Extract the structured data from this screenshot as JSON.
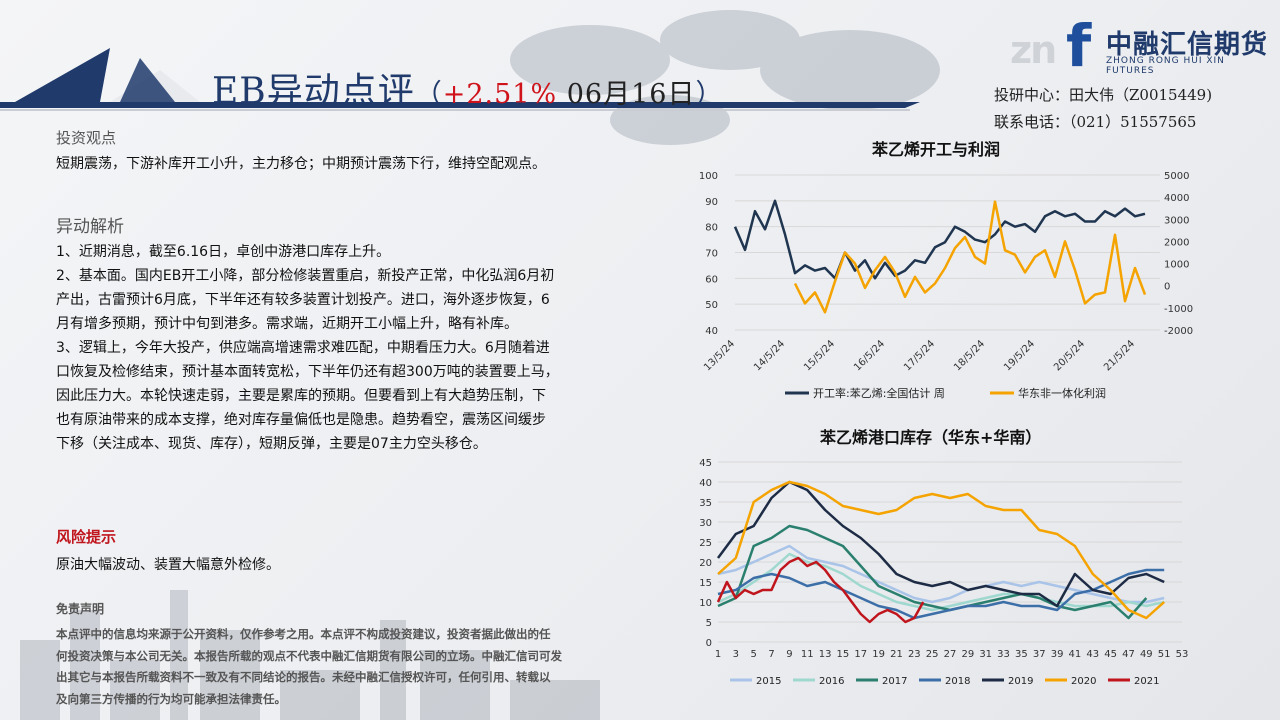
{
  "header": {
    "title_main": "EB异动点评",
    "title_open": "（",
    "title_change": "+2.51%",
    "title_date": " 06月16日",
    "title_close": "）",
    "logo_mark": "zn",
    "logo_f": "f",
    "logo_cn": "中融汇信期货",
    "logo_en": "ZHONG RONG HUI XIN FUTURES",
    "contact_line1": "投研中心：田大伟（Z0015449)",
    "contact_line2": "联系电话：（021）51557565"
  },
  "view": {
    "heading": "投资观点",
    "text": "短期震荡，下游补库开工小升，主力移仓；中期预计震荡下行，维持空配观点。"
  },
  "analysis": {
    "heading": "异动解析",
    "lines": [
      "1、近期消息，截至6.16日，卓创中游港口库存上升。",
      "2、基本面。国内EB开工小降，部分检修装置重启，新投产正常，中化弘润6月初",
      "产出，古雷预计6月底，下半年还有较多装置计划投产。进口，海外逐步恢复，6",
      "月有增多预期，预计中旬到港多。需求端，近期开工小幅上升，略有补库。",
      "3、逻辑上，今年大投产，供应端高增速需求难匹配，中期看压力大。6月随着进",
      "口恢复及检修结束，预计基本面转宽松，下半年仍还有超300万吨的装置要上马，",
      "因此压力大。本轮快速走弱，主要是累库的预期。但要看到上有大趋势压制，下",
      "也有原油带来的成本支撑，绝对库存量偏低也是隐患。趋势看空，震荡区间缓步",
      "下移（关注成本、现货、库存），短期反弹，主要是07主力空头移仓。"
    ]
  },
  "risk": {
    "heading": "风险提示",
    "text": "原油大幅波动、装置大幅意外检修。"
  },
  "disclaimer": {
    "heading": "免责声明",
    "lines": [
      "本点评中的信息均来源于公开资料，仅作参考之用。本点评不构成投资建议，投资者据此做出的任",
      "何投资决策与本公司无关。本报告所载的观点不代表中融汇信期货有限公司的立场。中融汇信司可发",
      "出其它与本报告所载资料不一致及有不同结论的报告。未经中融汇信授权许可，任何引用、转载以",
      "及向第三方传播的行为均可能承担法律责任。"
    ]
  },
  "chart_data": [
    {
      "type": "line",
      "title": "苯乙烯开工与利润",
      "x_ticks": [
        "13/5/24",
        "14/5/24",
        "15/5/24",
        "16/5/24",
        "17/5/24",
        "18/5/24",
        "19/5/24",
        "20/5/24",
        "21/5/24"
      ],
      "y_left": {
        "ticks": [
          40,
          50,
          60,
          70,
          80,
          90,
          100
        ],
        "range": [
          40,
          100
        ]
      },
      "y_right": {
        "ticks": [
          -2000,
          -1000,
          0,
          1000,
          2000,
          3000,
          4000,
          5000
        ],
        "range": [
          -2000,
          5000
        ]
      },
      "series": [
        {
          "name": "开工率:苯乙烯:全国估计 周",
          "axis": "left",
          "color": "#1f3550",
          "x": [
            13.0,
            13.2,
            13.4,
            13.6,
            13.8,
            14.0,
            14.2,
            14.4,
            14.6,
            14.8,
            15.0,
            15.2,
            15.4,
            15.6,
            15.8,
            16.0,
            16.2,
            16.4,
            16.6,
            16.8,
            17.0,
            17.2,
            17.4,
            17.6,
            17.8,
            18.0,
            18.2,
            18.4,
            18.6,
            18.8,
            19.0,
            19.2,
            19.4,
            19.6,
            19.8,
            20.0,
            20.2,
            20.4,
            20.6,
            20.8,
            21.0,
            21.2
          ],
          "values": [
            80,
            71,
            86,
            79,
            90,
            77,
            62,
            65,
            63,
            64,
            60,
            70,
            63,
            67,
            60,
            66,
            61,
            63,
            67,
            66,
            72,
            74,
            80,
            78,
            75,
            74,
            77,
            82,
            80,
            81,
            78,
            84,
            86,
            84,
            85,
            82,
            82,
            86,
            84,
            87,
            84,
            85
          ]
        },
        {
          "name": "华东非一体化利润",
          "axis": "right",
          "color": "#f5a300",
          "x": [
            14.2,
            14.4,
            14.6,
            14.8,
            15.0,
            15.2,
            15.4,
            15.6,
            15.8,
            16.0,
            16.2,
            16.4,
            16.6,
            16.8,
            17.0,
            17.2,
            17.4,
            17.6,
            17.8,
            18.0,
            18.2,
            18.4,
            18.6,
            18.8,
            19.0,
            19.2,
            19.4,
            19.6,
            19.8,
            20.0,
            20.2,
            20.4,
            20.6,
            20.8,
            21.0,
            21.2
          ],
          "values": [
            100,
            -800,
            -300,
            -1200,
            200,
            1500,
            1000,
            -100,
            700,
            1300,
            600,
            -500,
            400,
            -300,
            100,
            800,
            1700,
            2200,
            1300,
            1000,
            3800,
            1600,
            1400,
            600,
            1300,
            1600,
            400,
            2000,
            700,
            -800,
            -400,
            -300,
            2300,
            -700,
            800,
            -400
          ]
        }
      ],
      "legend_position": "bottom",
      "grid": true
    },
    {
      "type": "line",
      "title": "苯乙烯港口库存（华东+华南）",
      "x_ticks": [
        1,
        3,
        5,
        7,
        9,
        11,
        13,
        15,
        17,
        19,
        21,
        23,
        25,
        27,
        29,
        31,
        33,
        35,
        37,
        39,
        41,
        43,
        45,
        47,
        49,
        51,
        53
      ],
      "y_ticks": [
        0,
        5,
        10,
        15,
        20,
        25,
        30,
        35,
        40,
        45
      ],
      "y_range": [
        0,
        45
      ],
      "series": [
        {
          "name": "2015",
          "color": "#a9c4e8",
          "x": [
            1,
            3,
            5,
            7,
            9,
            11,
            13,
            15,
            17,
            19,
            21,
            23,
            25,
            27,
            29,
            31,
            33,
            35,
            37,
            39,
            41,
            43,
            45,
            47,
            49,
            51
          ],
          "values": [
            17,
            18,
            20,
            22,
            24,
            21,
            20,
            19,
            17,
            15,
            13,
            11,
            10,
            11,
            13,
            14,
            15,
            14,
            15,
            14,
            13,
            12,
            11,
            10,
            10,
            11
          ]
        },
        {
          "name": "2016",
          "color": "#9fd8cf",
          "x": [
            1,
            3,
            5,
            7,
            9,
            11,
            13,
            15,
            17,
            19,
            21,
            23,
            25,
            27,
            29,
            31,
            33,
            35,
            37,
            39,
            41,
            43,
            45,
            47,
            49,
            51
          ],
          "values": [
            10,
            12,
            15,
            18,
            22,
            20,
            19,
            17,
            14,
            12,
            10,
            9,
            8,
            9,
            10,
            11,
            12,
            12,
            11,
            10,
            9,
            9,
            9,
            10,
            9,
            10
          ]
        },
        {
          "name": "2017",
          "color": "#2a7f6e",
          "x": [
            1,
            3,
            5,
            7,
            9,
            11,
            13,
            15,
            17,
            19,
            21,
            23,
            25,
            27,
            29,
            31,
            33,
            35,
            37,
            39,
            41,
            43,
            45,
            47,
            49
          ],
          "values": [
            9,
            11,
            24,
            26,
            29,
            28,
            26,
            24,
            19,
            14,
            12,
            10,
            9,
            8,
            9,
            10,
            11,
            12,
            11,
            9,
            8,
            9,
            10,
            6,
            11
          ]
        },
        {
          "name": "2018",
          "color": "#3c6ea8",
          "x": [
            1,
            3,
            5,
            7,
            9,
            11,
            13,
            15,
            17,
            19,
            21,
            23,
            25,
            27,
            29,
            31,
            33,
            35,
            37,
            39,
            41,
            43,
            45,
            47,
            49,
            51
          ],
          "values": [
            12,
            13,
            16,
            17,
            16,
            14,
            15,
            13,
            11,
            9,
            8,
            6,
            7,
            8,
            9,
            9,
            10,
            9,
            9,
            8,
            12,
            13,
            15,
            17,
            18,
            18
          ]
        },
        {
          "name": "2019",
          "color": "#1d2b45",
          "x": [
            1,
            3,
            5,
            7,
            9,
            11,
            13,
            15,
            17,
            19,
            21,
            23,
            25,
            27,
            29,
            31,
            33,
            35,
            37,
            39,
            41,
            43,
            45,
            47,
            49,
            51
          ],
          "values": [
            21,
            27,
            29,
            36,
            40,
            38,
            33,
            29,
            26,
            22,
            17,
            15,
            14,
            15,
            13,
            14,
            13,
            12,
            12,
            9,
            17,
            13,
            12,
            16,
            17,
            15
          ]
        },
        {
          "name": "2020",
          "color": "#f5a300",
          "x": [
            1,
            3,
            5,
            7,
            9,
            11,
            13,
            15,
            17,
            19,
            21,
            23,
            25,
            27,
            29,
            31,
            33,
            35,
            37,
            39,
            41,
            43,
            45,
            47,
            49,
            51
          ],
          "values": [
            17,
            21,
            35,
            38,
            40,
            39,
            37,
            34,
            33,
            32,
            33,
            36,
            37,
            36,
            37,
            34,
            33,
            33,
            28,
            27,
            24,
            17,
            13,
            8,
            6,
            10
          ]
        },
        {
          "name": "2021",
          "color": "#c0151d",
          "x": [
            1,
            2,
            3,
            4,
            5,
            6,
            7,
            8,
            9,
            10,
            11,
            12,
            13,
            14,
            15,
            16,
            17,
            18,
            19,
            20,
            21,
            22,
            23,
            24
          ],
          "values": [
            10,
            15,
            11,
            13,
            12,
            13,
            13,
            18,
            20,
            21,
            19,
            20,
            18,
            15,
            13,
            10,
            7,
            5,
            7,
            8,
            7,
            5,
            6,
            10
          ]
        }
      ],
      "legend_position": "bottom",
      "grid": true
    }
  ]
}
